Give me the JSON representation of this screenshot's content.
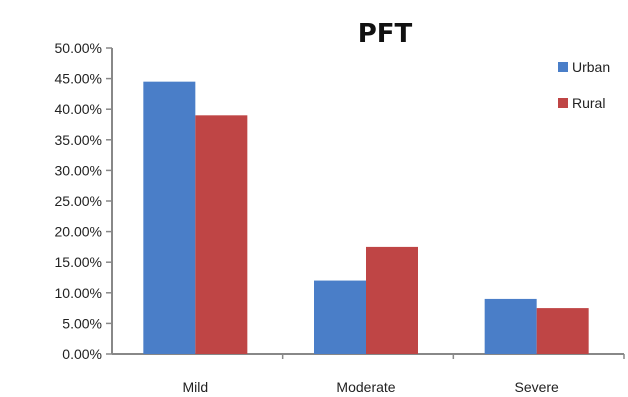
{
  "chart_data": {
    "type": "bar",
    "title": "PFT",
    "categories": [
      "Mild",
      "Moderate",
      "Severe"
    ],
    "series": [
      {
        "name": "Urban",
        "values": [
          44.5,
          12.0,
          9.0
        ],
        "color": "#4a7ec8"
      },
      {
        "name": "Rural",
        "values": [
          39.0,
          17.5,
          7.5
        ],
        "color": "#bf4545"
      }
    ],
    "ylim": [
      0,
      50
    ],
    "y_ticks": [
      "0.00%",
      "5.00%",
      "10.00%",
      "15.00%",
      "20.00%",
      "25.00%",
      "30.00%",
      "35.00%",
      "40.00%",
      "45.00%",
      "50.00%"
    ],
    "grid": false,
    "legend_position": "right"
  }
}
